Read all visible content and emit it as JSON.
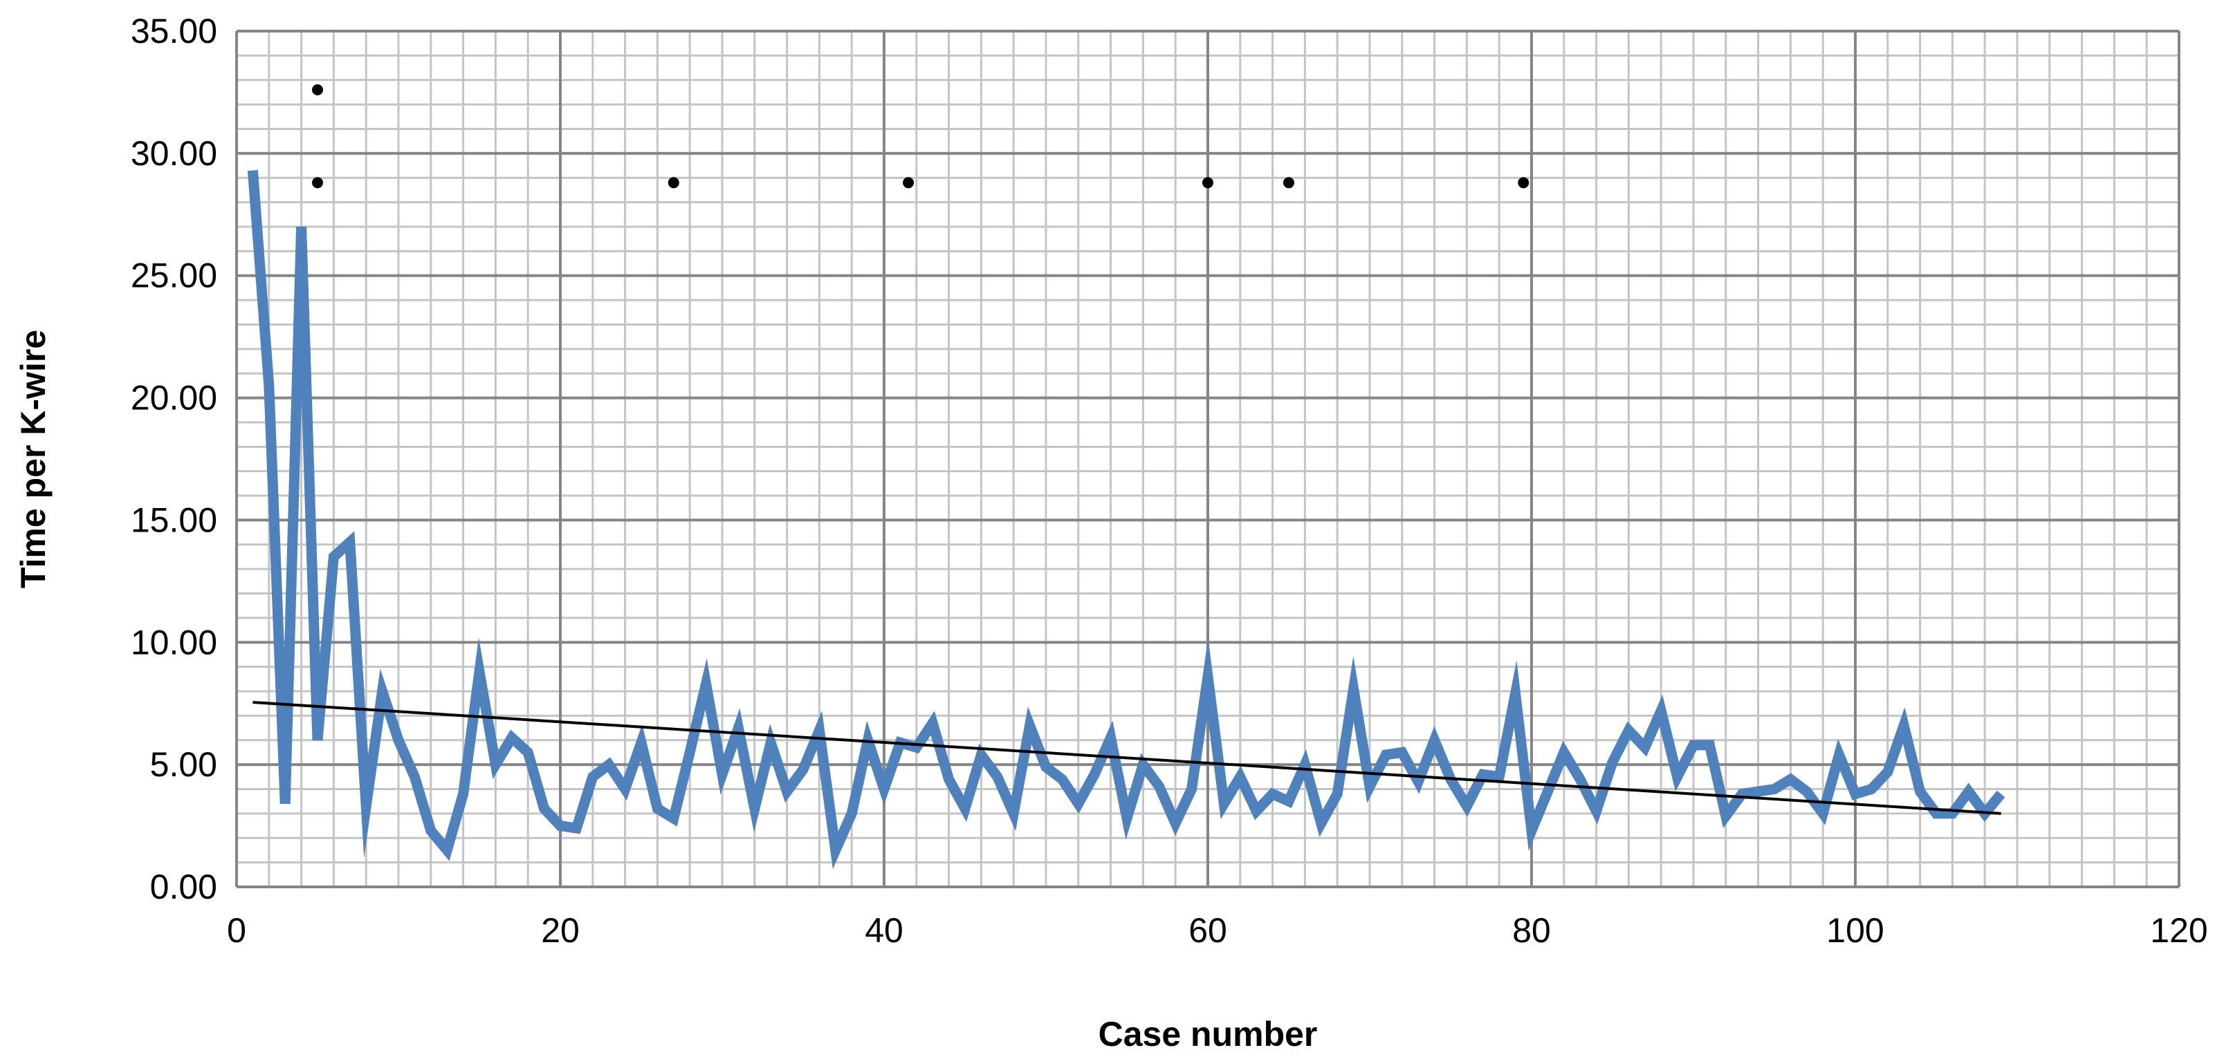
{
  "chart_data": {
    "type": "line",
    "xlabel": "Case number",
    "ylabel": "Time per K-wire",
    "xlim": [
      0,
      120
    ],
    "ylim": [
      0,
      35
    ],
    "x_ticks": [
      0,
      20,
      40,
      60,
      80,
      100,
      120
    ],
    "x_tick_labels": [
      "0",
      "20",
      "40",
      "60",
      "80",
      "100",
      "120"
    ],
    "y_ticks": [
      0,
      5,
      10,
      15,
      20,
      25,
      30,
      35
    ],
    "y_tick_labels": [
      "0.00",
      "5.00",
      "10.00",
      "15.00",
      "20.00",
      "25.00",
      "30.00",
      "35.00"
    ],
    "grid": {
      "major_x_step": 20,
      "minor_x_step": 2,
      "major_y_step": 5,
      "minor_y_step": 1
    },
    "legend": "none",
    "series": [
      {
        "type": "line",
        "color": "#4F81BD",
        "x": [
          1,
          2,
          3,
          4,
          5,
          6,
          7,
          8,
          9,
          10,
          11,
          12,
          13,
          14,
          15,
          16,
          17,
          18,
          19,
          20,
          21,
          22,
          23,
          24,
          25,
          26,
          27,
          28,
          29,
          30,
          31,
          32,
          33,
          34,
          35,
          36,
          37,
          38,
          39,
          40,
          41,
          42,
          43,
          44,
          45,
          46,
          47,
          48,
          49,
          50,
          51,
          52,
          53,
          54,
          55,
          56,
          57,
          58,
          59,
          60,
          61,
          62,
          63,
          64,
          65,
          66,
          67,
          68,
          69,
          70,
          71,
          72,
          73,
          74,
          75,
          76,
          77,
          78,
          79,
          80,
          81,
          82,
          83,
          84,
          85,
          86,
          87,
          88,
          89,
          90,
          91,
          92,
          93,
          94,
          95,
          96,
          97,
          98,
          99,
          100,
          101,
          102,
          103,
          104,
          105,
          106,
          107,
          108,
          109
        ],
        "y": [
          29.3,
          20.5,
          3.4,
          27.0,
          6.0,
          13.5,
          14.1,
          3.3,
          8.0,
          6.0,
          4.5,
          2.3,
          1.5,
          3.8,
          8.8,
          5.0,
          6.1,
          5.5,
          3.2,
          2.5,
          2.4,
          4.5,
          5.0,
          4.0,
          5.9,
          3.2,
          2.8,
          5.5,
          8.3,
          4.6,
          6.5,
          3.2,
          5.9,
          3.9,
          4.8,
          6.4,
          1.5,
          3.0,
          6.0,
          4.0,
          5.9,
          5.7,
          6.7,
          4.4,
          3.2,
          5.4,
          4.5,
          3.0,
          6.6,
          4.9,
          4.4,
          3.4,
          4.6,
          6.1,
          2.8,
          5.0,
          4.1,
          2.6,
          4.0,
          8.6,
          3.4,
          4.5,
          3.1,
          3.8,
          3.5,
          5.0,
          2.6,
          3.8,
          8.1,
          4.1,
          5.4,
          5.5,
          4.3,
          6.0,
          4.4,
          3.3,
          4.6,
          4.5,
          7.9,
          2.3,
          3.9,
          5.5,
          4.4,
          3.1,
          5.1,
          6.4,
          5.7,
          7.2,
          4.5,
          5.8,
          5.8,
          2.9,
          3.8,
          3.9,
          4.0,
          4.4,
          3.9,
          3.0,
          5.4,
          3.8,
          4.0,
          4.7,
          6.6,
          3.9,
          3.0,
          3.0,
          3.9,
          3.0,
          3.8
        ]
      },
      {
        "type": "trendline",
        "color": "#000000",
        "x": [
          1,
          109
        ],
        "y": [
          7.55,
          3.0
        ]
      },
      {
        "type": "scatter",
        "color": "#000000",
        "x": [
          5,
          5,
          27,
          41.5,
          60,
          65,
          79.5
        ],
        "y": [
          32.6,
          28.8,
          28.8,
          28.8,
          28.8,
          28.8,
          28.8
        ]
      }
    ]
  }
}
